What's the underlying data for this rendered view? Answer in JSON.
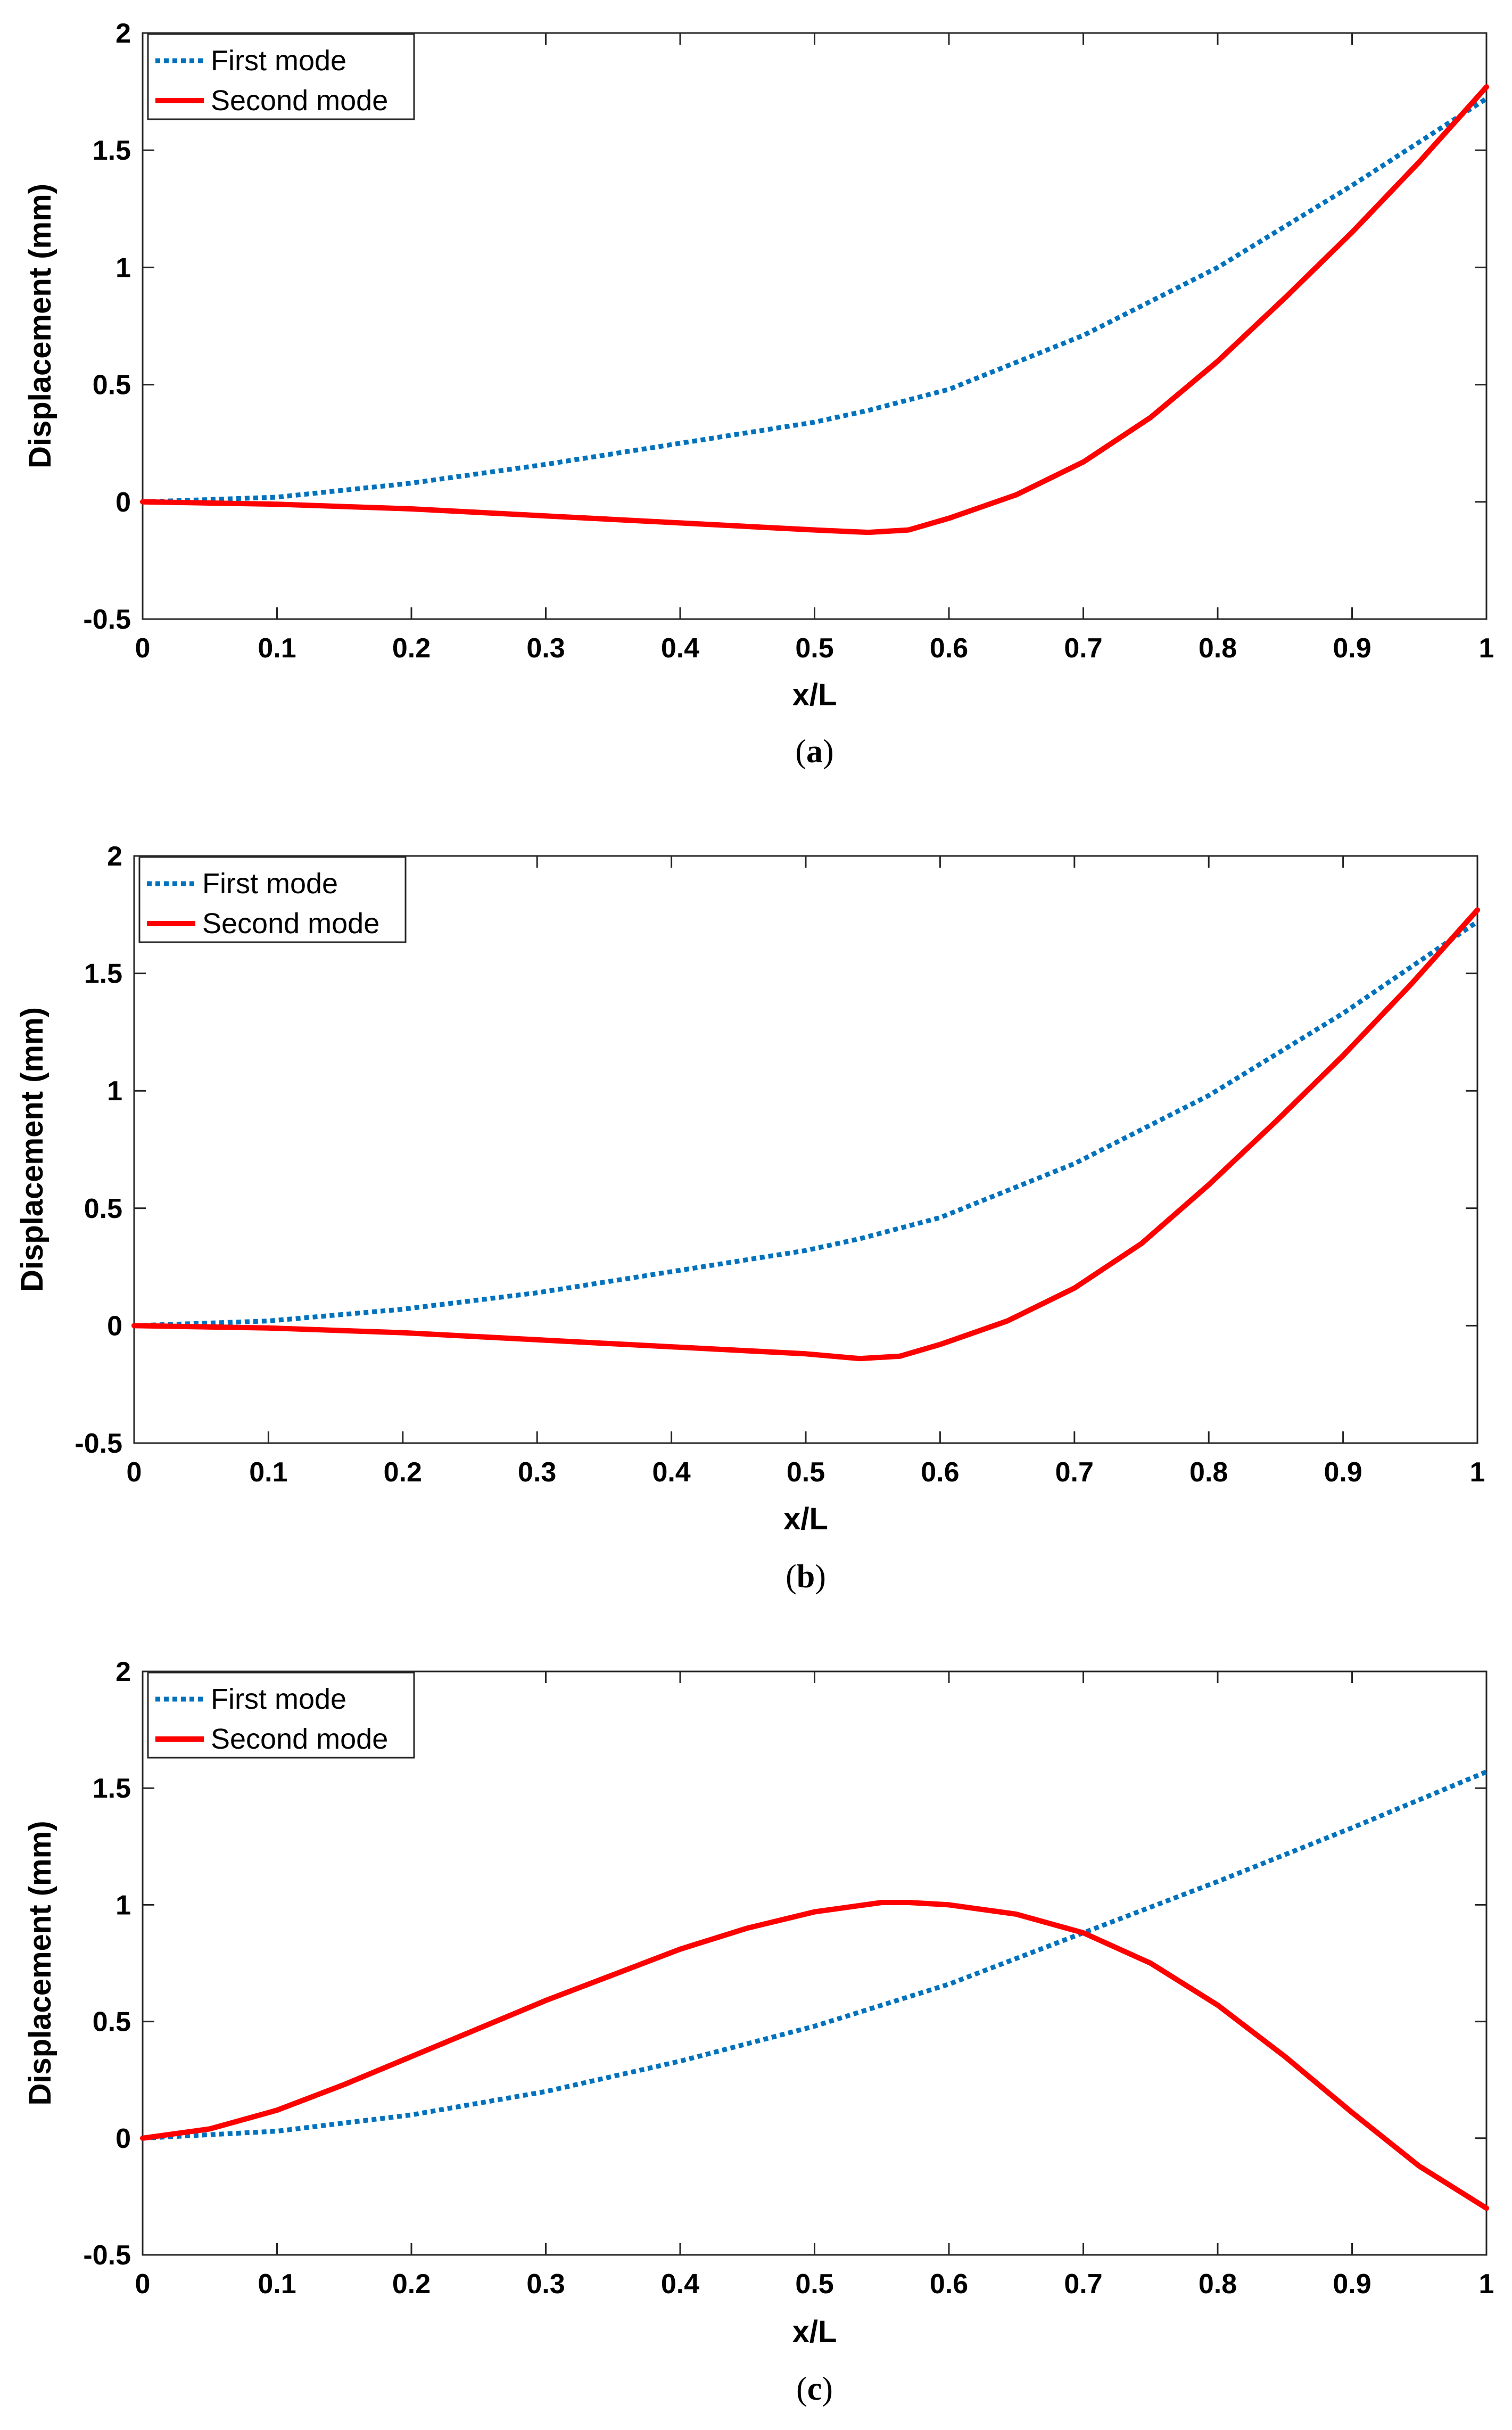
{
  "chart_data": [
    {
      "type": "line",
      "panel": "a",
      "caption": {
        "open": "(",
        "letter": "a",
        "close": ")"
      },
      "xlabel": "x/L",
      "ylabel": "Displacement (mm)",
      "xlim": [
        0,
        1
      ],
      "ylim": [
        -0.5,
        2
      ],
      "xticks": [
        0,
        0.1,
        0.2,
        0.3,
        0.4,
        0.5,
        0.6,
        0.7,
        0.8,
        0.9,
        1
      ],
      "xtick_labels": [
        "0",
        "0.1",
        "0.2",
        "0.3",
        "0.4",
        "0.5",
        "0.6",
        "0.7",
        "0.8",
        "0.9",
        "1"
      ],
      "yticks": [
        -0.5,
        0,
        0.5,
        1,
        1.5,
        2
      ],
      "ytick_labels": [
        "-0.5",
        "0",
        "0.5",
        "1",
        "1.5",
        "2"
      ],
      "legend_position": "top-left",
      "series": [
        {
          "name": "First mode",
          "color": "#0072BD",
          "style": "dotted",
          "x": [
            0,
            0.1,
            0.2,
            0.3,
            0.4,
            0.5,
            0.54,
            0.6,
            0.7,
            0.8,
            0.9,
            1
          ],
          "y": [
            0,
            0.02,
            0.08,
            0.16,
            0.25,
            0.34,
            0.39,
            0.48,
            0.71,
            1.0,
            1.35,
            1.72
          ]
        },
        {
          "name": "Second mode",
          "color": "#FF0000",
          "style": "solid",
          "x": [
            0,
            0.1,
            0.2,
            0.3,
            0.4,
            0.5,
            0.54,
            0.57,
            0.6,
            0.65,
            0.7,
            0.75,
            0.8,
            0.85,
            0.9,
            0.95,
            1
          ],
          "y": [
            0,
            -0.01,
            -0.03,
            -0.06,
            -0.09,
            -0.12,
            -0.13,
            -0.12,
            -0.07,
            0.03,
            0.17,
            0.36,
            0.6,
            0.87,
            1.15,
            1.45,
            1.77
          ]
        }
      ]
    },
    {
      "type": "line",
      "panel": "b",
      "caption": {
        "open": "(",
        "letter": "b",
        "close": ")"
      },
      "xlabel": "x/L",
      "ylabel": "Displacement (mm)",
      "xlim": [
        0,
        1
      ],
      "ylim": [
        -0.5,
        2
      ],
      "xticks": [
        0,
        0.1,
        0.2,
        0.3,
        0.4,
        0.5,
        0.6,
        0.7,
        0.8,
        0.9,
        1
      ],
      "xtick_labels": [
        "0",
        "0.1",
        "0.2",
        "0.3",
        "0.4",
        "0.5",
        "0.6",
        "0.7",
        "0.8",
        "0.9",
        "1"
      ],
      "yticks": [
        -0.5,
        0,
        0.5,
        1,
        1.5,
        2
      ],
      "ytick_labels": [
        "-0.5",
        "0",
        "0.5",
        "1",
        "1.5",
        "2"
      ],
      "legend_position": "top-left",
      "series": [
        {
          "name": "First mode",
          "color": "#0072BD",
          "style": "dotted",
          "x": [
            0,
            0.1,
            0.2,
            0.3,
            0.4,
            0.5,
            0.54,
            0.6,
            0.7,
            0.8,
            0.9,
            1
          ],
          "y": [
            0,
            0.02,
            0.07,
            0.14,
            0.23,
            0.32,
            0.37,
            0.46,
            0.69,
            0.98,
            1.33,
            1.72
          ]
        },
        {
          "name": "Second mode",
          "color": "#FF0000",
          "style": "solid",
          "x": [
            0,
            0.1,
            0.2,
            0.3,
            0.4,
            0.5,
            0.54,
            0.57,
            0.6,
            0.65,
            0.7,
            0.75,
            0.8,
            0.85,
            0.9,
            0.95,
            1
          ],
          "y": [
            0,
            -0.01,
            -0.03,
            -0.06,
            -0.09,
            -0.12,
            -0.14,
            -0.13,
            -0.08,
            0.02,
            0.16,
            0.35,
            0.6,
            0.87,
            1.15,
            1.45,
            1.77
          ]
        }
      ]
    },
    {
      "type": "line",
      "panel": "c",
      "caption": {
        "open": "(",
        "letter": "c",
        "close": ")"
      },
      "xlabel": "x/L",
      "ylabel": "Displacement (mm)",
      "xlim": [
        0,
        1
      ],
      "ylim": [
        -0.5,
        2
      ],
      "xticks": [
        0,
        0.1,
        0.2,
        0.3,
        0.4,
        0.5,
        0.6,
        0.7,
        0.8,
        0.9,
        1
      ],
      "xtick_labels": [
        "0",
        "0.1",
        "0.2",
        "0.3",
        "0.4",
        "0.5",
        "0.6",
        "0.7",
        "0.8",
        "0.9",
        "1"
      ],
      "yticks": [
        -0.5,
        0,
        0.5,
        1,
        1.5,
        2
      ],
      "ytick_labels": [
        "-0.5",
        "0",
        "0.5",
        "1",
        "1.5",
        "2"
      ],
      "legend_position": "top-left",
      "series": [
        {
          "name": "First mode",
          "color": "#0072BD",
          "style": "dotted",
          "x": [
            0,
            0.1,
            0.2,
            0.3,
            0.4,
            0.5,
            0.6,
            0.7,
            0.8,
            0.9,
            1
          ],
          "y": [
            0,
            0.03,
            0.1,
            0.2,
            0.33,
            0.48,
            0.66,
            0.88,
            1.1,
            1.33,
            1.57
          ]
        },
        {
          "name": "Second mode",
          "color": "#FF0000",
          "style": "solid",
          "x": [
            0,
            0.05,
            0.1,
            0.15,
            0.2,
            0.25,
            0.3,
            0.35,
            0.4,
            0.45,
            0.5,
            0.55,
            0.57,
            0.6,
            0.65,
            0.7,
            0.75,
            0.8,
            0.85,
            0.9,
            0.95,
            1
          ],
          "y": [
            0,
            0.04,
            0.12,
            0.23,
            0.35,
            0.47,
            0.59,
            0.7,
            0.81,
            0.9,
            0.97,
            1.01,
            1.01,
            1.0,
            0.96,
            0.88,
            0.75,
            0.57,
            0.35,
            0.11,
            -0.12,
            -0.3
          ]
        }
      ]
    }
  ]
}
